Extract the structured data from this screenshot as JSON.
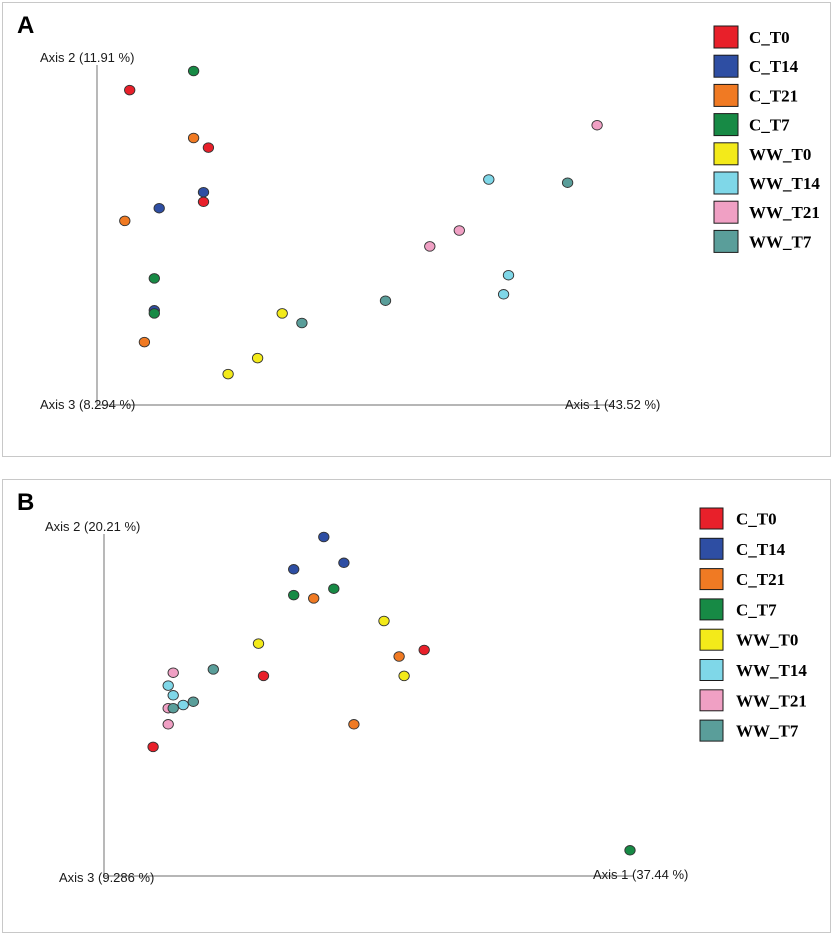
{
  "legend": [
    {
      "label": "C_T0",
      "color": "#e8202a"
    },
    {
      "label": "C_T14",
      "color": "#2e4ea3"
    },
    {
      "label": "C_T21",
      "color": "#f07a23"
    },
    {
      "label": "C_T7",
      "color": "#178a45"
    },
    {
      "label": "WW_T0",
      "color": "#f3ea1a"
    },
    {
      "label": "WW_T14",
      "color": "#7fd7e8"
    },
    {
      "label": "WW_T21",
      "color": "#f0a0c4"
    },
    {
      "label": "WW_T7",
      "color": "#5a9e9a"
    }
  ],
  "chart_data": [
    {
      "panel": "A",
      "type": "scatter",
      "title": "",
      "xlabel": "Axis 1 (43.52 %)",
      "ylabel": "Axis 2 (11.91 %)",
      "zlabel": "Axis 3 (8.294 %)",
      "xlim": [
        0,
        100
      ],
      "ylim": [
        0,
        100
      ],
      "points": [
        {
          "group": "C_T0",
          "x": 4,
          "y": 94
        },
        {
          "group": "C_T0",
          "x": 20,
          "y": 76
        },
        {
          "group": "C_T0",
          "x": 19,
          "y": 59
        },
        {
          "group": "C_T14",
          "x": 19,
          "y": 62
        },
        {
          "group": "C_T14",
          "x": 10,
          "y": 57
        },
        {
          "group": "C_T14",
          "x": 9,
          "y": 25
        },
        {
          "group": "C_T21",
          "x": 17,
          "y": 79
        },
        {
          "group": "C_T21",
          "x": 3,
          "y": 53
        },
        {
          "group": "C_T21",
          "x": 7,
          "y": 15
        },
        {
          "group": "C_T7",
          "x": 17,
          "y": 100
        },
        {
          "group": "C_T7",
          "x": 9,
          "y": 35
        },
        {
          "group": "C_T7",
          "x": 9,
          "y": 24
        },
        {
          "group": "WW_T0",
          "x": 35,
          "y": 24
        },
        {
          "group": "WW_T0",
          "x": 30,
          "y": 10
        },
        {
          "group": "WW_T0",
          "x": 24,
          "y": 5
        },
        {
          "group": "WW_T14",
          "x": 77,
          "y": 66
        },
        {
          "group": "WW_T14",
          "x": 81,
          "y": 36
        },
        {
          "group": "WW_T14",
          "x": 80,
          "y": 30
        },
        {
          "group": "WW_T21",
          "x": 99,
          "y": 83
        },
        {
          "group": "WW_T21",
          "x": 71,
          "y": 50
        },
        {
          "group": "WW_T21",
          "x": 65,
          "y": 45
        },
        {
          "group": "WW_T7",
          "x": 93,
          "y": 65
        },
        {
          "group": "WW_T7",
          "x": 56,
          "y": 28
        },
        {
          "group": "WW_T7",
          "x": 39,
          "y": 21
        }
      ]
    },
    {
      "panel": "B",
      "type": "scatter",
      "title": "",
      "xlabel": "Axis 1 (37.44 %)",
      "ylabel": "Axis 2 (20.21 %)",
      "zlabel": "Axis 3 (9.286 %)",
      "xlim": [
        0,
        100
      ],
      "ylim": [
        0,
        100
      ],
      "points": [
        {
          "group": "C_T0",
          "x": 59,
          "y": 65
        },
        {
          "group": "C_T0",
          "x": 27,
          "y": 57
        },
        {
          "group": "C_T0",
          "x": 5,
          "y": 35
        },
        {
          "group": "C_T14",
          "x": 39,
          "y": 100
        },
        {
          "group": "C_T14",
          "x": 43,
          "y": 92
        },
        {
          "group": "C_T14",
          "x": 33,
          "y": 90
        },
        {
          "group": "C_T21",
          "x": 37,
          "y": 81
        },
        {
          "group": "C_T21",
          "x": 54,
          "y": 63
        },
        {
          "group": "C_T21",
          "x": 45,
          "y": 42
        },
        {
          "group": "C_T7",
          "x": 41,
          "y": 84
        },
        {
          "group": "C_T7",
          "x": 33,
          "y": 82
        },
        {
          "group": "C_T7",
          "x": 100,
          "y": 3
        },
        {
          "group": "WW_T0",
          "x": 51,
          "y": 74
        },
        {
          "group": "WW_T0",
          "x": 26,
          "y": 67
        },
        {
          "group": "WW_T0",
          "x": 55,
          "y": 57
        },
        {
          "group": "WW_T14",
          "x": 8,
          "y": 54
        },
        {
          "group": "WW_T14",
          "x": 9,
          "y": 51
        },
        {
          "group": "WW_T14",
          "x": 11,
          "y": 48
        },
        {
          "group": "WW_T21",
          "x": 9,
          "y": 58
        },
        {
          "group": "WW_T21",
          "x": 8,
          "y": 47
        },
        {
          "group": "WW_T21",
          "x": 8,
          "y": 42
        },
        {
          "group": "WW_T7",
          "x": 17,
          "y": 59
        },
        {
          "group": "WW_T7",
          "x": 13,
          "y": 49
        },
        {
          "group": "WW_T7",
          "x": 9,
          "y": 47
        }
      ]
    }
  ],
  "panels": [
    {
      "label": "A"
    },
    {
      "label": "B"
    }
  ]
}
